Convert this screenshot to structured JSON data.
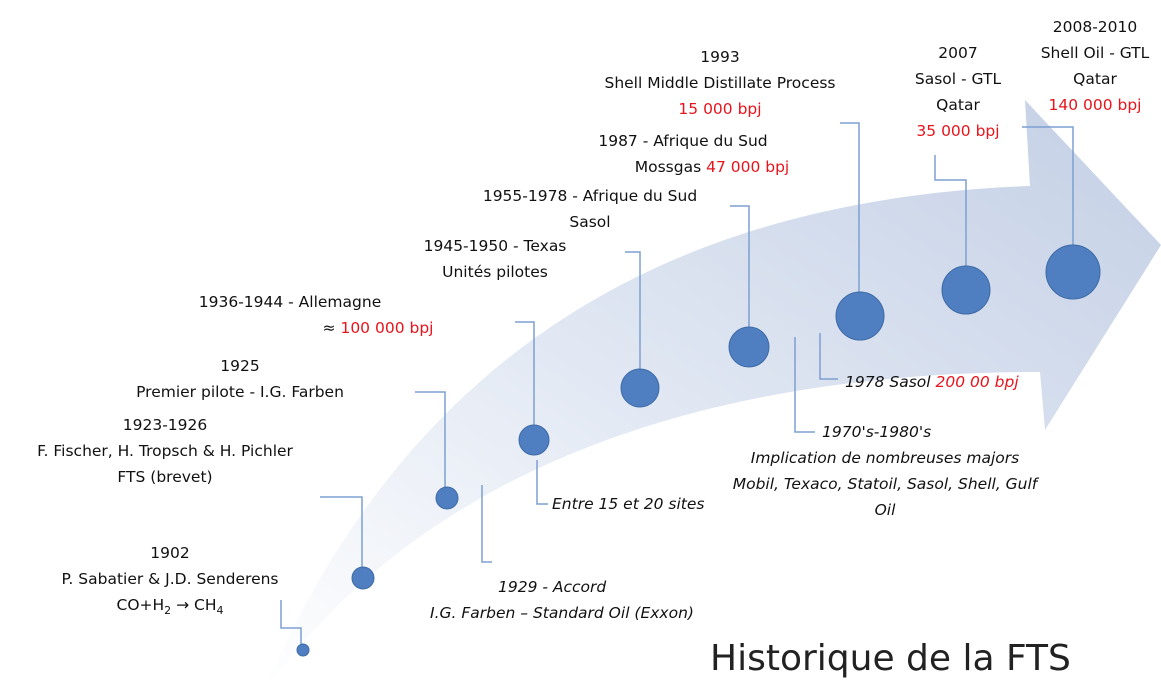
{
  "title": "Historique de la FTS",
  "upper_events": [
    {
      "lines": [
        "1902",
        "P. Sabatier & J.D. Senderens"
      ],
      "formula": [
        "CO+H",
        "2",
        " → CH",
        "4"
      ]
    },
    {
      "lines": [
        "1923-1926",
        "F. Fischer, H. Tropsch & H. Pichler",
        "FTS (brevet)"
      ]
    },
    {
      "lines": [
        "1925",
        "Premier pilote - I.G. Farben"
      ]
    },
    {
      "lines": [
        "1936-1944 - Allemagne"
      ],
      "prefix": "≈",
      "capacity": "100 000 bpj"
    },
    {
      "lines": [
        "1945-1950 - Texas",
        "Unités pilotes"
      ]
    },
    {
      "lines": [
        "1955-1978 - Afrique du Sud",
        "Sasol"
      ]
    },
    {
      "lines": [
        "1987 - Afrique du Sud"
      ],
      "prefix": "Mossgas",
      "capacity": "47 000 bpj"
    },
    {
      "lines": [
        "1993",
        "Shell Middle Distillate Process"
      ],
      "capacity": "15 000 bpj"
    },
    {
      "lines": [
        "2007",
        "Sasol - GTL",
        "Qatar"
      ],
      "capacity": "35 000 bpj"
    },
    {
      "lines": [
        "2008-2010",
        "Shell Oil - GTL",
        "Qatar"
      ],
      "capacity": "140 000 bpj"
    }
  ],
  "lower_events": [
    {
      "lines": [
        "1929 - Accord",
        "I.G. Farben – Standard Oil (Exxon)"
      ]
    },
    {
      "lines": [
        "Entre 15 et 20 sites"
      ]
    },
    {
      "lines": [
        "1970's-1980's",
        "Implication de nombreuses majors",
        "Mobil, Texaco, Statoil, Sasol, Shell, Gulf",
        "Oil"
      ]
    },
    {
      "prefix": "1978 Sasol",
      "capacity": "200 00 bpj"
    }
  ]
}
